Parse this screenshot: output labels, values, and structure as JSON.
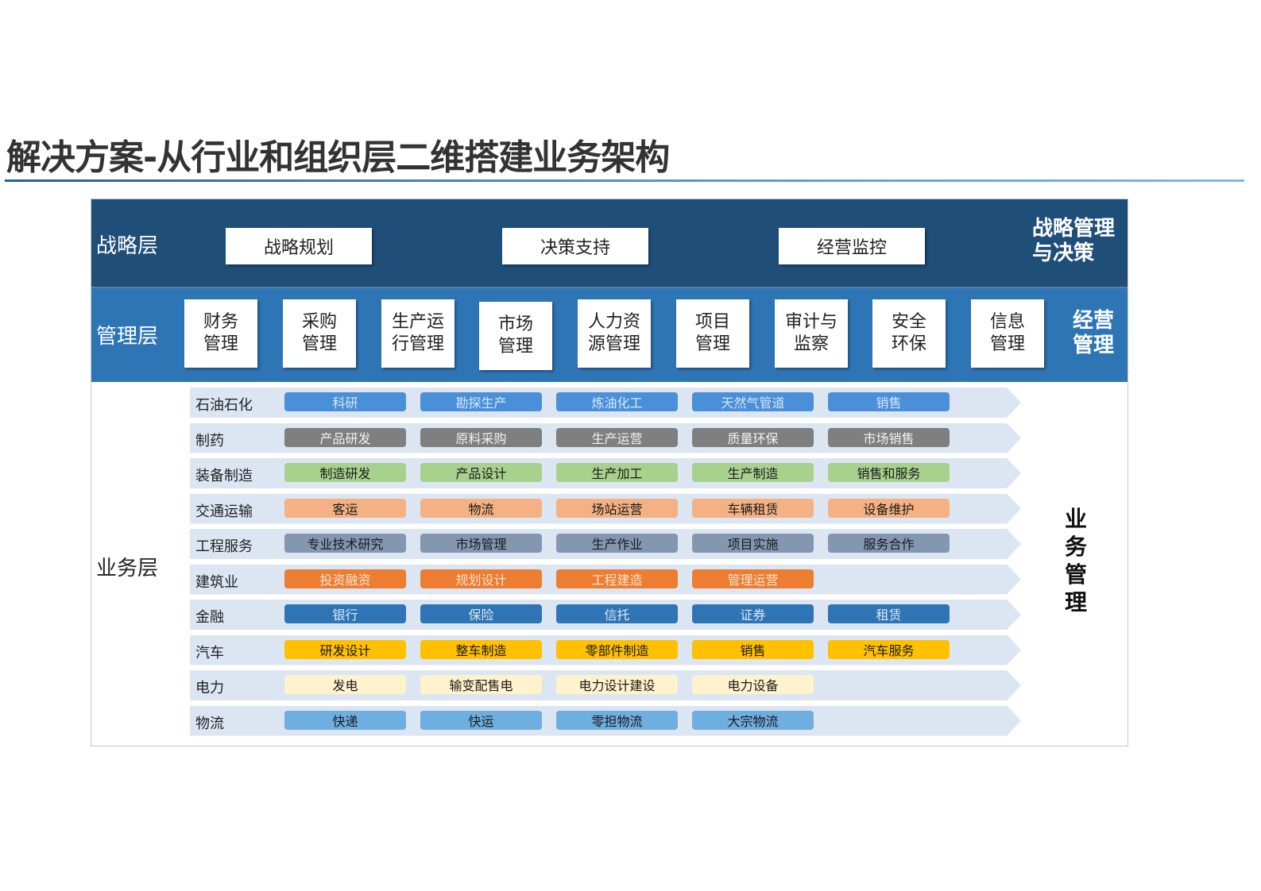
{
  "title": "解决方案-从行业和组织层二维搭建业务架构",
  "strategy_layer": {
    "label": "战略层",
    "side_label_line1": "战略管理",
    "side_label_line2": "与决策",
    "boxes": [
      "战略规划",
      "决策支持",
      "经营监控"
    ]
  },
  "management_layer": {
    "label": "管理层",
    "side_label_line1": "经营",
    "side_label_line2": "管理",
    "boxes": [
      {
        "l1": "财务",
        "l2": "管理"
      },
      {
        "l1": "采购",
        "l2": "管理"
      },
      {
        "l1": "生产运",
        "l2": "行管理"
      },
      {
        "l1": "市场",
        "l2": "管理"
      },
      {
        "l1": "人力资",
        "l2": "源管理"
      },
      {
        "l1": "项目",
        "l2": "管理"
      },
      {
        "l1": "审计与",
        "l2": "监察"
      },
      {
        "l1": "安全",
        "l2": "环保"
      },
      {
        "l1": "信息",
        "l2": "管理"
      }
    ]
  },
  "business_layer": {
    "label": "业务层",
    "side_label": [
      "业",
      "务",
      "管",
      "理"
    ],
    "industries": [
      {
        "name": "石油石化",
        "color": "#4a90d9",
        "text_color": "#d6e6f7",
        "items": [
          "科研",
          "勘探生产",
          "炼油化工",
          "天然气管道",
          "销售"
        ]
      },
      {
        "name": "制药",
        "color": "#7f7f7f",
        "text_color": "#f2f2f2",
        "items": [
          "产品研发",
          "原料采购",
          "生产运营",
          "质量环保",
          "市场销售"
        ]
      },
      {
        "name": "装备制造",
        "color": "#a9d18e",
        "text_color": "#1a1a1a",
        "items": [
          "制造研发",
          "产品设计",
          "生产加工",
          "生产制造",
          "销售和服务"
        ]
      },
      {
        "name": "交通运输",
        "color": "#f4b183",
        "text_color": "#1a1a1a",
        "items": [
          "客运",
          "物流",
          "场站运营",
          "车辆租赁",
          "设备维护"
        ]
      },
      {
        "name": "工程服务",
        "color": "#8497b0",
        "text_color": "#1a1a1a",
        "items": [
          "专业技术研究",
          "市场管理",
          "生产作业",
          "项目实施",
          "服务合作"
        ]
      },
      {
        "name": "建筑业",
        "color": "#ed7d31",
        "text_color": "#fbe3d2",
        "items": [
          "投资融资",
          "规划设计",
          "工程建造",
          "管理运营"
        ]
      },
      {
        "name": "金融",
        "color": "#2e75b6",
        "text_color": "#dbe8f5",
        "items": [
          "银行",
          "保险",
          "信托",
          "证券",
          "租赁"
        ]
      },
      {
        "name": "汽车",
        "color": "#ffc000",
        "text_color": "#1a1a1a",
        "items": [
          "研发设计",
          "整车制造",
          "零部件制造",
          "销售",
          "汽车服务"
        ]
      },
      {
        "name": "电力",
        "color": "#fff2cc",
        "text_color": "#1a1a1a",
        "items": [
          "发电",
          "输变配售电",
          "电力设计建设",
          "电力设备"
        ]
      },
      {
        "name": "物流",
        "color": "#6faee0",
        "text_color": "#1a1a1a",
        "items": [
          "快递",
          "快运",
          "零担物流",
          "大宗物流"
        ]
      }
    ]
  }
}
